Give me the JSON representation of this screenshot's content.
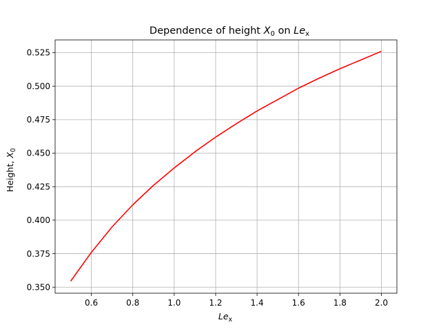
{
  "chart_data": {
    "type": "line",
    "title": {
      "main": "Dependence of height ",
      "var": "X",
      "sub": "0",
      "mid": " on ",
      "var2": "Le",
      "sub2": "x"
    },
    "xlabel": {
      "var": "Le",
      "sub": "x"
    },
    "ylabel": {
      "main": "Height, ",
      "var": "X",
      "sub": "0"
    },
    "xlim": [
      0.425,
      2.075
    ],
    "ylim": [
      0.3455,
      0.5345
    ],
    "xticks": [
      0.6,
      0.8,
      1.0,
      1.2,
      1.4,
      1.6,
      1.8,
      2.0
    ],
    "xtick_labels": [
      "0.6",
      "0.8",
      "1.0",
      "1.2",
      "1.4",
      "1.6",
      "1.8",
      "2.0"
    ],
    "yticks": [
      0.35,
      0.375,
      0.4,
      0.425,
      0.45,
      0.475,
      0.5,
      0.525
    ],
    "ytick_labels": [
      "0.350",
      "0.375",
      "0.400",
      "0.425",
      "0.450",
      "0.475",
      "0.500",
      "0.525"
    ],
    "grid": true,
    "series": [
      {
        "color": "#ff0000",
        "x": [
          0.5,
          0.6,
          0.7,
          0.8,
          0.9,
          1.0,
          1.1,
          1.2,
          1.3,
          1.4,
          1.5,
          1.6,
          1.7,
          1.8,
          1.9,
          2.0
        ],
        "y": [
          0.3545,
          0.376,
          0.395,
          0.4115,
          0.426,
          0.439,
          0.451,
          0.462,
          0.472,
          0.4815,
          0.49,
          0.4985,
          0.506,
          0.513,
          0.5195,
          0.526
        ]
      }
    ]
  }
}
